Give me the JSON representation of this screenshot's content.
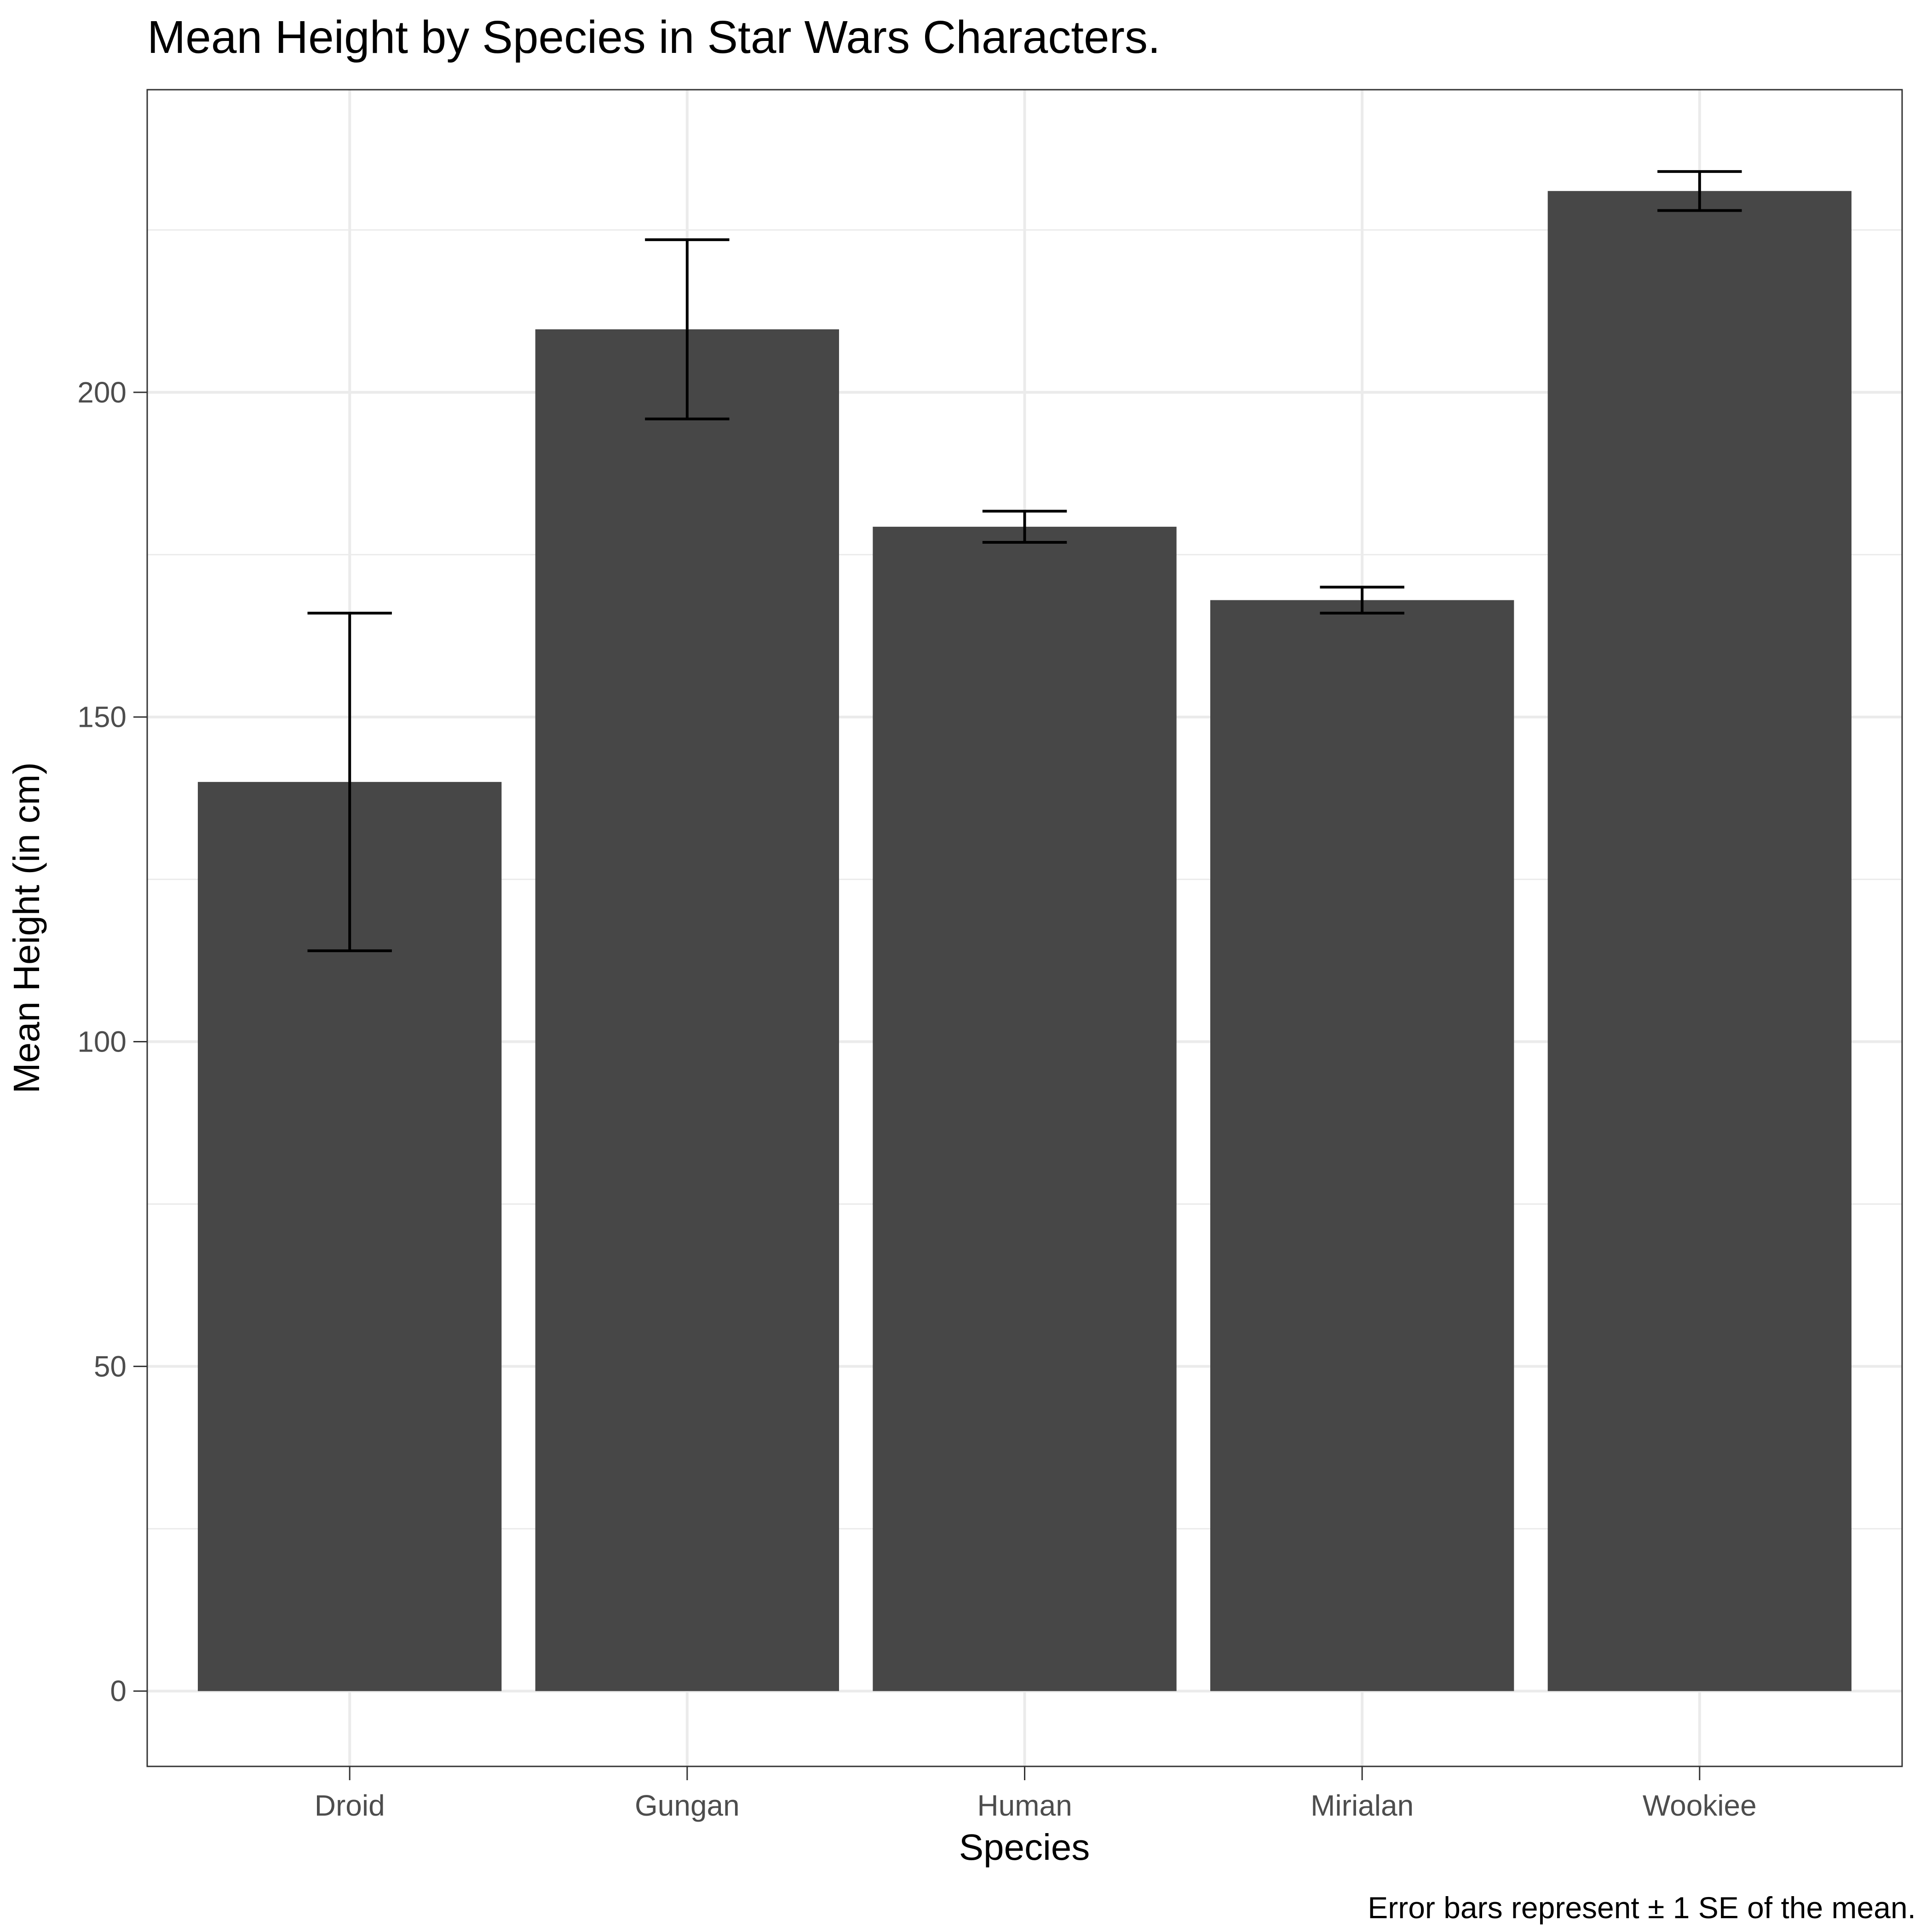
{
  "chart_data": {
    "type": "bar",
    "title": "Mean Height by Species in Star Wars Characters.",
    "xlabel": "Species",
    "ylabel": "Mean Height (in cm)",
    "caption": "Error bars represent ± 1 SE of the mean.",
    "categories": [
      "Droid",
      "Gungan",
      "Human",
      "Mirialan",
      "Wookiee"
    ],
    "values": [
      140,
      209.7,
      179.3,
      168,
      231
    ],
    "error_low": [
      114,
      195.9,
      176.9,
      166,
      228
    ],
    "error_high": [
      166,
      223.5,
      181.7,
      170,
      234
    ],
    "yticks": [
      0,
      50,
      100,
      150,
      200
    ],
    "ylim": [
      -11.6,
      246.6
    ],
    "grid": true,
    "colors": {
      "bar": "#474747",
      "error_bar": "#000000",
      "grid": "#ebebeb",
      "panel_border": "#333333",
      "tick_label": "#4d4d4d",
      "text": "#000000"
    }
  }
}
